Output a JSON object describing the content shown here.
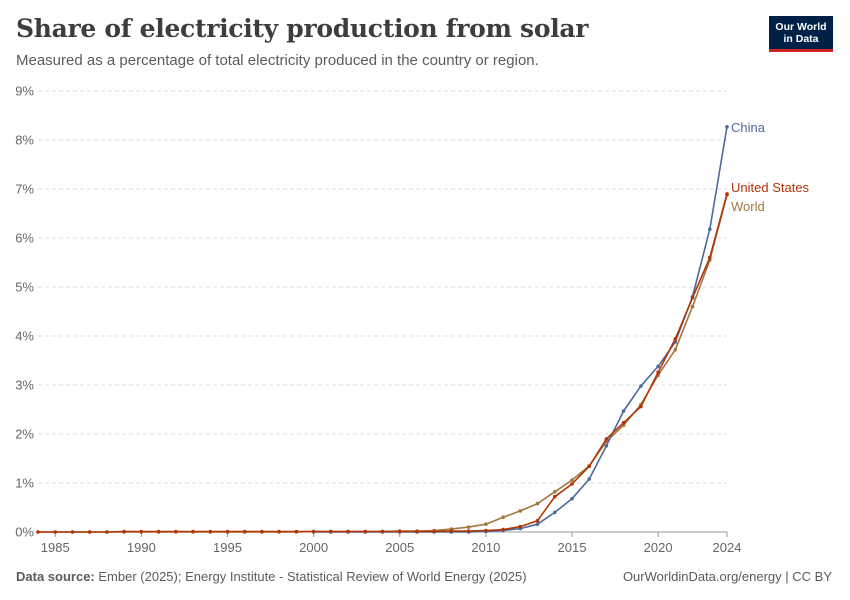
{
  "header": {
    "title": "Share of electricity production from solar",
    "subtitle": "Measured as a percentage of total electricity produced in the country or region.",
    "logo_line1": "Our World",
    "logo_line2": "in Data"
  },
  "footer": {
    "source_label": "Data source:",
    "source_text": "Ember (2025); Energy Institute - Statistical Review of World Energy (2025)",
    "link_text": "OurWorldinData.org/energy | CC BY"
  },
  "colors": {
    "China": "#4c6a9c",
    "United States": "#b13507",
    "World": "#a2763e"
  },
  "chart_data": {
    "type": "line",
    "title": "Share of electricity production from solar",
    "y_unit": "%",
    "xlim": [
      1984,
      2024
    ],
    "ylim": [
      0,
      9
    ],
    "x_ticks": [
      1985,
      1990,
      1995,
      2000,
      2005,
      2010,
      2015,
      2020,
      2024
    ],
    "y_ticks": [
      0,
      1,
      2,
      3,
      4,
      5,
      6,
      7,
      8,
      9
    ],
    "y_tick_labels": [
      "0%",
      "1%",
      "2%",
      "3%",
      "4%",
      "5%",
      "6%",
      "7%",
      "8%",
      "9%"
    ],
    "grid": "horizontal dashed",
    "legend": "inline labels at line ends",
    "series": [
      {
        "name": "World",
        "x": [
          1984,
          1985,
          1986,
          1987,
          1988,
          1989,
          1990,
          1991,
          1992,
          1993,
          1994,
          1995,
          1996,
          1997,
          1998,
          1999,
          2000,
          2001,
          2002,
          2003,
          2004,
          2005,
          2006,
          2007,
          2008,
          2009,
          2010,
          2011,
          2012,
          2013,
          2014,
          2015,
          2016,
          2017,
          2018,
          2019,
          2020,
          2021,
          2022,
          2023,
          2024
        ],
        "values": [
          0,
          0,
          0,
          0,
          0,
          0,
          0,
          0,
          0,
          0,
          0,
          0,
          0,
          0,
          0,
          0,
          0.01,
          0.01,
          0.01,
          0.01,
          0.01,
          0.02,
          0.02,
          0.03,
          0.06,
          0.1,
          0.16,
          0.3,
          0.43,
          0.58,
          0.82,
          1.06,
          1.35,
          1.85,
          2.18,
          2.6,
          3.2,
          3.72,
          4.6,
          5.55,
          6.88
        ]
      },
      {
        "name": "China",
        "x": [
          2000,
          2001,
          2002,
          2003,
          2004,
          2005,
          2006,
          2007,
          2008,
          2009,
          2010,
          2011,
          2012,
          2013,
          2014,
          2015,
          2016,
          2017,
          2018,
          2019,
          2020,
          2021,
          2022,
          2023,
          2024
        ],
        "values": [
          0,
          0,
          0,
          0,
          0,
          0,
          0,
          0,
          0,
          0,
          0.01,
          0.03,
          0.07,
          0.16,
          0.4,
          0.68,
          1.08,
          1.76,
          2.47,
          2.98,
          3.38,
          3.88,
          4.8,
          6.18,
          8.27
        ]
      },
      {
        "name": "United States",
        "x": [
          1984,
          1985,
          1986,
          1987,
          1988,
          1989,
          1990,
          1991,
          1992,
          1993,
          1994,
          1995,
          1996,
          1997,
          1998,
          1999,
          2000,
          2001,
          2002,
          2003,
          2004,
          2005,
          2006,
          2007,
          2008,
          2009,
          2010,
          2011,
          2012,
          2013,
          2014,
          2015,
          2016,
          2017,
          2018,
          2019,
          2020,
          2021,
          2022,
          2023,
          2024
        ],
        "values": [
          0,
          0,
          0,
          0,
          0,
          0.01,
          0.01,
          0.01,
          0.01,
          0.01,
          0.01,
          0.01,
          0.01,
          0.01,
          0.01,
          0.01,
          0.01,
          0.01,
          0.01,
          0.01,
          0.01,
          0.01,
          0.01,
          0.01,
          0.02,
          0.02,
          0.03,
          0.05,
          0.11,
          0.23,
          0.72,
          0.98,
          1.34,
          1.9,
          2.23,
          2.56,
          3.26,
          3.94,
          4.78,
          5.6,
          6.9
        ]
      }
    ]
  }
}
